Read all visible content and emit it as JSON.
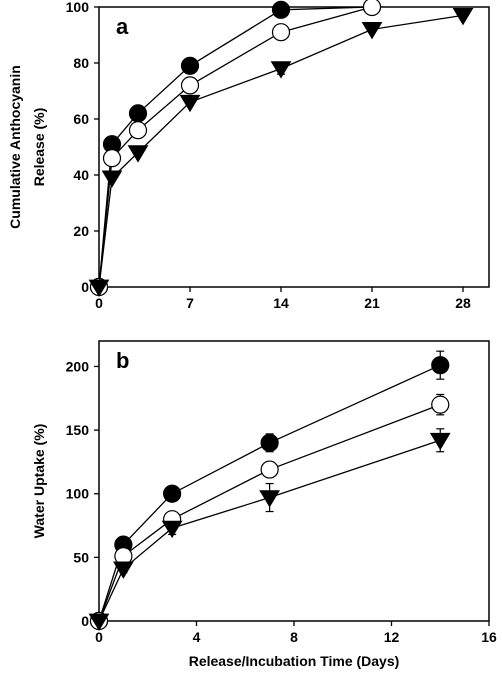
{
  "chart_data": [
    {
      "type": "line",
      "panel_label": "a",
      "xlabel": "",
      "ylabel_lines": [
        "Cumulative Anthocyanin",
        "Release (%)"
      ],
      "xlim": [
        0,
        30
      ],
      "ylim": [
        0,
        100
      ],
      "xticks": [
        0,
        7,
        14,
        21,
        28
      ],
      "yticks": [
        0,
        20,
        40,
        60,
        80,
        100
      ],
      "grid": false,
      "series": [
        {
          "marker": "filled-circle",
          "x": [
            0,
            1,
            3,
            7,
            14,
            21
          ],
          "y": [
            0,
            51,
            62,
            79,
            99,
            100
          ]
        },
        {
          "marker": "open-circle",
          "x": [
            0,
            1,
            3,
            7,
            14,
            21
          ],
          "y": [
            0,
            46,
            56,
            72,
            91,
            100
          ]
        },
        {
          "marker": "filled-triangle-down",
          "x": [
            0,
            1,
            3,
            7,
            14,
            21,
            28
          ],
          "y": [
            0,
            39,
            48,
            66,
            78,
            92,
            97
          ],
          "err": [
            0,
            0,
            0,
            0,
            2,
            0,
            0
          ]
        }
      ]
    },
    {
      "type": "line",
      "panel_label": "b",
      "xlabel": "Release/Incubation Time (Days)",
      "ylabel_lines": [
        "Water Uptake (%)"
      ],
      "xlim": [
        0,
        16
      ],
      "ylim": [
        0,
        220
      ],
      "xticks": [
        0,
        4,
        8,
        12,
        16
      ],
      "yticks": [
        0,
        50,
        100,
        150,
        200
      ],
      "grid": false,
      "series": [
        {
          "marker": "filled-circle",
          "x": [
            0,
            1,
            3,
            7,
            14
          ],
          "y": [
            0,
            60,
            100,
            140,
            201
          ],
          "err": [
            0,
            3,
            6,
            7,
            11
          ]
        },
        {
          "marker": "open-circle",
          "x": [
            0,
            1,
            3,
            7,
            14
          ],
          "y": [
            0,
            51,
            80,
            119,
            170
          ],
          "err": [
            0,
            3,
            5,
            6,
            8
          ]
        },
        {
          "marker": "filled-triangle-down",
          "x": [
            0,
            1,
            3,
            7,
            14
          ],
          "y": [
            0,
            41,
            73,
            97,
            142
          ],
          "err": [
            0,
            3,
            5,
            11,
            9
          ]
        }
      ]
    }
  ]
}
